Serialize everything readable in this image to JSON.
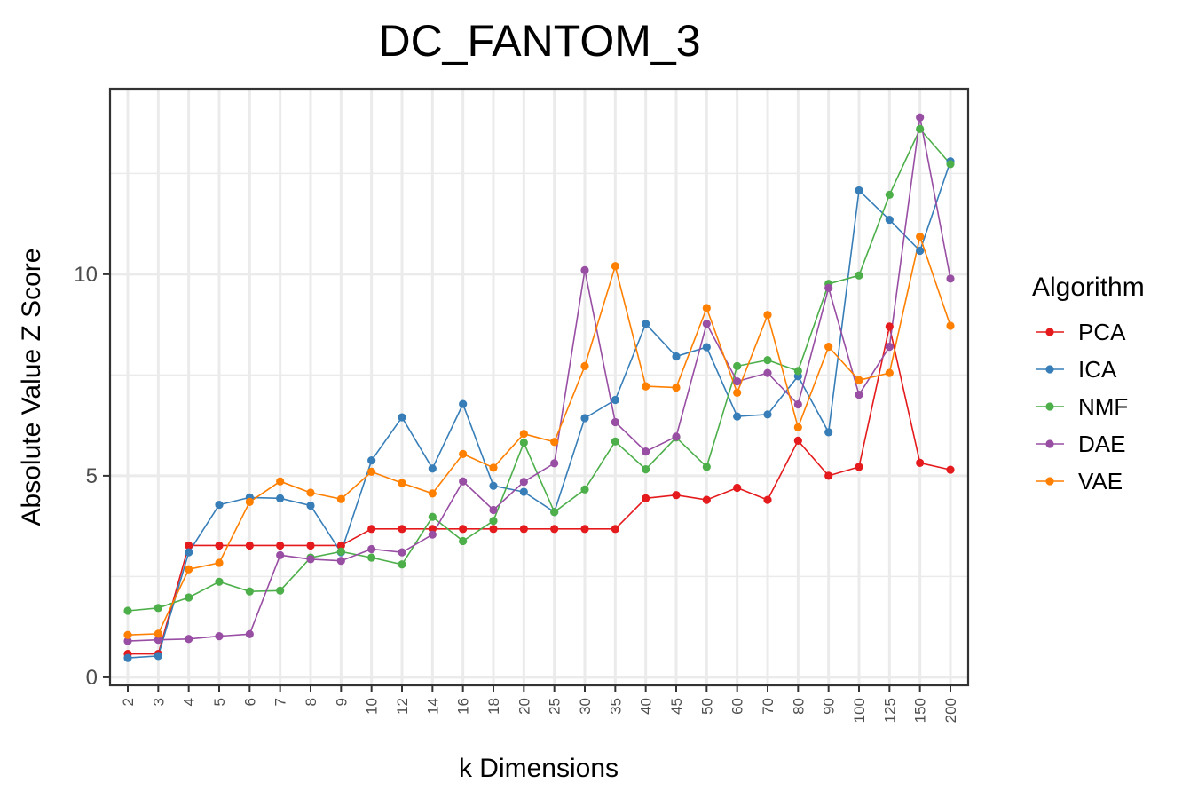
{
  "chart_data": {
    "type": "line",
    "title": "DC_FANTOM_3",
    "xlabel": "k Dimensions",
    "ylabel": "Absolute Value Z Score",
    "categories": [
      "2",
      "3",
      "4",
      "5",
      "6",
      "7",
      "8",
      "9",
      "10",
      "12",
      "14",
      "16",
      "18",
      "20",
      "25",
      "30",
      "35",
      "40",
      "45",
      "50",
      "60",
      "70",
      "80",
      "90",
      "100",
      "125",
      "150",
      "200"
    ],
    "ylim": [
      -0.2,
      14.6
    ],
    "yticks": [
      0,
      5,
      10
    ],
    "yticks_minor": [
      2.5,
      7.5,
      12.5
    ],
    "grid": true,
    "legend": {
      "title": "Algorithm",
      "position": "right"
    },
    "series": [
      {
        "name": "PCA",
        "color": "#e41a1c",
        "values": [
          0.58,
          0.58,
          3.27,
          3.27,
          3.27,
          3.27,
          3.27,
          3.27,
          3.68,
          3.68,
          3.68,
          3.68,
          3.68,
          3.68,
          3.68,
          3.68,
          3.68,
          4.44,
          4.52,
          4.4,
          4.7,
          4.4,
          5.87,
          5.0,
          5.22,
          8.7,
          5.32,
          5.15
        ]
      },
      {
        "name": "ICA",
        "color": "#377eb8",
        "values": [
          0.48,
          0.53,
          3.1,
          4.28,
          4.46,
          4.44,
          4.26,
          3.1,
          5.38,
          6.45,
          5.18,
          6.78,
          4.75,
          4.6,
          4.1,
          6.43,
          6.88,
          8.77,
          7.96,
          8.19,
          6.47,
          6.52,
          7.47,
          6.08,
          12.08,
          11.35,
          10.58,
          12.8
        ]
      },
      {
        "name": "NMF",
        "color": "#4daf4a",
        "values": [
          1.65,
          1.72,
          1.98,
          2.37,
          2.13,
          2.15,
          2.97,
          3.12,
          2.97,
          2.8,
          3.98,
          3.38,
          3.88,
          5.82,
          4.1,
          4.66,
          5.85,
          5.16,
          5.95,
          5.22,
          7.72,
          7.87,
          7.6,
          9.76,
          9.97,
          11.97,
          13.6,
          12.73
        ]
      },
      {
        "name": "DAE",
        "color": "#984ea3",
        "values": [
          0.9,
          0.93,
          0.95,
          1.02,
          1.07,
          3.03,
          2.93,
          2.89,
          3.18,
          3.1,
          3.54,
          4.86,
          4.15,
          4.85,
          5.31,
          10.1,
          6.33,
          5.6,
          5.97,
          8.77,
          7.34,
          7.55,
          6.77,
          9.66,
          7.01,
          8.2,
          13.89,
          9.89
        ]
      },
      {
        "name": "VAE",
        "color": "#ff7f00",
        "values": [
          1.05,
          1.08,
          2.68,
          2.84,
          4.35,
          4.86,
          4.58,
          4.42,
          5.1,
          4.82,
          4.56,
          5.54,
          5.2,
          6.04,
          5.84,
          7.72,
          10.2,
          7.22,
          7.19,
          9.16,
          7.06,
          8.99,
          6.2,
          8.2,
          7.37,
          7.55,
          10.93,
          8.72
        ]
      }
    ]
  }
}
